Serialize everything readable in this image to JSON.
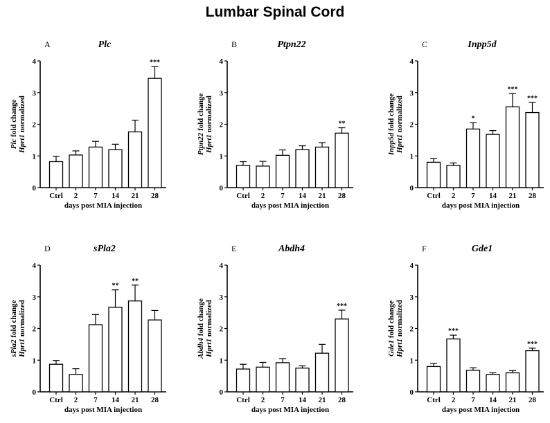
{
  "figure": {
    "title": "Lumbar Spinal Cord"
  },
  "chart_data": [
    {
      "type": "bar",
      "panel": "A",
      "title": "Plc",
      "ylabel_gene": "Plc",
      "ylabel_suffix": " fold change",
      "ylabel_line2_gene": "Hprt1",
      "ylabel_line2_suffix": " normalized",
      "xlabel": "days post MIA injection",
      "categories": [
        "Ctrl",
        "2",
        "7",
        "14",
        "21",
        "28"
      ],
      "values": [
        0.82,
        1.03,
        1.28,
        1.2,
        1.76,
        3.45
      ],
      "errors": [
        0.17,
        0.13,
        0.18,
        0.17,
        0.37,
        0.37
      ],
      "significance": [
        "",
        "",
        "",
        "",
        "",
        "***"
      ],
      "ylim": [
        0,
        4
      ],
      "yticks": [
        "0",
        "1",
        "2",
        "3",
        "4"
      ]
    },
    {
      "type": "bar",
      "panel": "B",
      "title": "Ptpn22",
      "ylabel_gene": "Ptpn22",
      "ylabel_suffix": " fold change",
      "ylabel_line2_gene": "Hprt1",
      "ylabel_line2_suffix": " normalized",
      "xlabel": "days post MIA injection",
      "categories": [
        "Ctrl",
        "2",
        "7",
        "14",
        "21",
        "28"
      ],
      "values": [
        0.7,
        0.68,
        1.02,
        1.2,
        1.28,
        1.72
      ],
      "errors": [
        0.12,
        0.15,
        0.17,
        0.12,
        0.14,
        0.17
      ],
      "significance": [
        "",
        "",
        "",
        "",
        "",
        "**"
      ],
      "ylim": [
        0,
        4
      ],
      "yticks": [
        "0",
        "1",
        "2",
        "3",
        "4"
      ]
    },
    {
      "type": "bar",
      "panel": "C",
      "title": "Inpp5d",
      "ylabel_gene": "Inpp5d",
      "ylabel_suffix": " fold change",
      "ylabel_line2_gene": "Hprt1",
      "ylabel_line2_suffix": " normalized",
      "xlabel": "days post MIA injection",
      "categories": [
        "Ctrl",
        "2",
        "7",
        "14",
        "21",
        "28"
      ],
      "values": [
        0.8,
        0.7,
        1.85,
        1.68,
        2.55,
        2.37
      ],
      "errors": [
        0.12,
        0.08,
        0.2,
        0.12,
        0.42,
        0.32
      ],
      "significance": [
        "",
        "",
        "*",
        "",
        "***",
        "***"
      ],
      "ylim": [
        0,
        4
      ],
      "yticks": [
        "0",
        "1",
        "2",
        "3",
        "4"
      ]
    },
    {
      "type": "bar",
      "panel": "D",
      "title": "sPla2",
      "ylabel_gene": "sPla2",
      "ylabel_suffix": " fold change",
      "ylabel_line2_gene": "Hprt1",
      "ylabel_line2_suffix": " normalized",
      "xlabel": "days post MIA injection",
      "categories": [
        "Ctrl",
        "2",
        "7",
        "14",
        "21",
        "28"
      ],
      "values": [
        0.87,
        0.55,
        2.12,
        2.67,
        2.87,
        2.27
      ],
      "errors": [
        0.12,
        0.18,
        0.32,
        0.55,
        0.5,
        0.3
      ],
      "significance": [
        "",
        "",
        "",
        "**",
        "**",
        ""
      ],
      "ylim": [
        0,
        4
      ],
      "yticks": [
        "0",
        "1",
        "2",
        "3",
        "4"
      ]
    },
    {
      "type": "bar",
      "panel": "E",
      "title": "Abdh4",
      "ylabel_gene": "Abdh4",
      "ylabel_suffix": " fold change",
      "ylabel_line2_gene": "Hprt1",
      "ylabel_line2_suffix": " normalized",
      "xlabel": "days post MIA injection",
      "categories": [
        "Ctrl",
        "2",
        "7",
        "14",
        "21",
        "28"
      ],
      "values": [
        0.72,
        0.78,
        0.92,
        0.75,
        1.22,
        2.3
      ],
      "errors": [
        0.15,
        0.15,
        0.13,
        0.07,
        0.28,
        0.28
      ],
      "significance": [
        "",
        "",
        "",
        "",
        "",
        "***"
      ],
      "ylim": [
        0,
        4
      ],
      "yticks": [
        "0",
        "1",
        "2",
        "3",
        "4"
      ]
    },
    {
      "type": "bar",
      "panel": "F",
      "title": "Gde1",
      "ylabel_gene": "Gde1",
      "ylabel_suffix": " fold change",
      "ylabel_line2_gene": "Hprt1",
      "ylabel_line2_suffix": " normalized",
      "xlabel": "days post MIA injection",
      "categories": [
        "Ctrl",
        "2",
        "7",
        "14",
        "21",
        "28"
      ],
      "values": [
        0.8,
        1.67,
        0.68,
        0.55,
        0.6,
        1.3
      ],
      "errors": [
        0.1,
        0.12,
        0.08,
        0.05,
        0.07,
        0.08
      ],
      "significance": [
        "",
        "***",
        "",
        "",
        "",
        "***"
      ],
      "ylim": [
        0,
        4
      ],
      "yticks": [
        "0",
        "1",
        "2",
        "3",
        "4"
      ]
    }
  ]
}
